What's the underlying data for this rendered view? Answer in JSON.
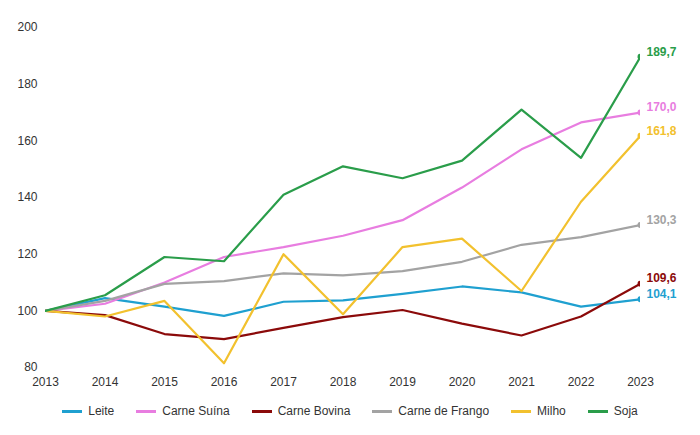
{
  "chart_data": {
    "type": "line",
    "x": [
      2013,
      2014,
      2015,
      2016,
      2017,
      2018,
      2019,
      2020,
      2021,
      2022,
      2023
    ],
    "xlim": [
      2013,
      2023
    ],
    "xticks": [
      2013,
      2014,
      2015,
      2016,
      2017,
      2018,
      2019,
      2020,
      2021,
      2022,
      2023
    ],
    "ylim": [
      80,
      200
    ],
    "yticks": [
      80,
      100,
      120,
      140,
      160,
      180,
      200
    ],
    "grid": false,
    "legend": "bottom",
    "data_labels": true,
    "series": [
      {
        "name": "Leite",
        "color": "#1fa0d0",
        "values": [
          100,
          104.5,
          101.5,
          98.2,
          103.2,
          103.7,
          106,
          108.6,
          106.5,
          101.5,
          104.1
        ],
        "value_labels": [
          null,
          null,
          null,
          null,
          null,
          null,
          null,
          null,
          null,
          null,
          "104,1"
        ]
      },
      {
        "name": "Carne Suína",
        "color": "#e87de0",
        "values": [
          100,
          102.5,
          110,
          119,
          122.5,
          126.5,
          132,
          143.5,
          157,
          166.5,
          170.0
        ],
        "value_labels": [
          null,
          null,
          null,
          null,
          null,
          null,
          null,
          null,
          null,
          null,
          "170,0"
        ]
      },
      {
        "name": "Carne Bovina",
        "color": "#8b0a0a",
        "values": [
          100,
          98.5,
          91.8,
          90,
          94,
          97.8,
          100.3,
          95.5,
          91.3,
          98,
          109.6
        ],
        "value_labels": [
          null,
          null,
          null,
          null,
          null,
          null,
          null,
          null,
          null,
          null,
          "109,6"
        ]
      },
      {
        "name": "Carne de Frango",
        "color": "#a3a3a3",
        "values": [
          100,
          103.5,
          109.5,
          110.5,
          113.2,
          112.5,
          114,
          117.3,
          123.3,
          126,
          130.3
        ],
        "value_labels": [
          null,
          null,
          null,
          null,
          null,
          null,
          null,
          null,
          null,
          null,
          "130,3"
        ]
      },
      {
        "name": "Milho",
        "color": "#f2c12e",
        "values": [
          100,
          98,
          103.5,
          81.5,
          120,
          98.8,
          122.5,
          125.5,
          107,
          138.5,
          161.8
        ],
        "value_labels": [
          null,
          null,
          null,
          null,
          null,
          null,
          null,
          null,
          null,
          null,
          "161,8"
        ]
      },
      {
        "name": "Soja",
        "color": "#2a9d4a",
        "values": [
          100,
          105.5,
          119,
          117.5,
          141,
          151,
          146.8,
          153,
          171,
          154,
          189.7
        ],
        "value_labels": [
          null,
          null,
          null,
          null,
          null,
          null,
          null,
          null,
          null,
          null,
          "189,7"
        ]
      }
    ]
  }
}
